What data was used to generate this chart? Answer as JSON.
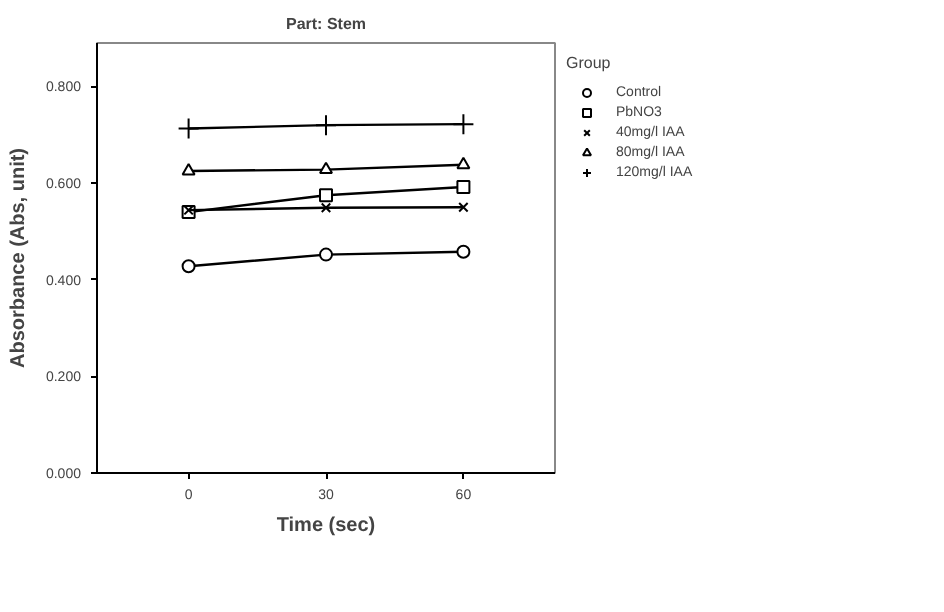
{
  "chart_data": {
    "type": "line",
    "title": "Part: Stem",
    "xlabel": "Time (sec)",
    "ylabel": "Absorbance (Abs, unit)",
    "legend_title": "Group",
    "x": [
      0,
      30,
      60
    ],
    "series": [
      {
        "name": "Control",
        "color": "#000000",
        "marker": "circle",
        "values": [
          0.428,
          0.452,
          0.458
        ]
      },
      {
        "name": "PbNO3",
        "color": "#000000",
        "marker": "square",
        "values": [
          0.54,
          0.575,
          0.592
        ]
      },
      {
        "name": "40mg/l IAA",
        "color": "#000000",
        "marker": "x",
        "values": [
          0.544,
          0.549,
          0.55
        ]
      },
      {
        "name": "80mg/l IAA",
        "color": "#000000",
        "marker": "triangle",
        "values": [
          0.625,
          0.628,
          0.638
        ]
      },
      {
        "name": "120mg/l IAA",
        "color": "#000000",
        "marker": "cross",
        "values": [
          0.713,
          0.72,
          0.722
        ]
      }
    ],
    "xlim": [
      -20,
      80
    ],
    "xticks": [
      0,
      30,
      60
    ],
    "ylim": [
      0,
      0.89
    ],
    "yticks": [
      {
        "value": 0,
        "label": "0.000"
      },
      {
        "value": 0.2,
        "label": "0.200"
      },
      {
        "value": 0.4,
        "label": "0.400"
      },
      {
        "value": 0.6,
        "label": "0.600"
      },
      {
        "value": 0.8,
        "label": "0.800"
      }
    ],
    "grid": false,
    "legend": "right",
    "line_style": "solid"
  }
}
